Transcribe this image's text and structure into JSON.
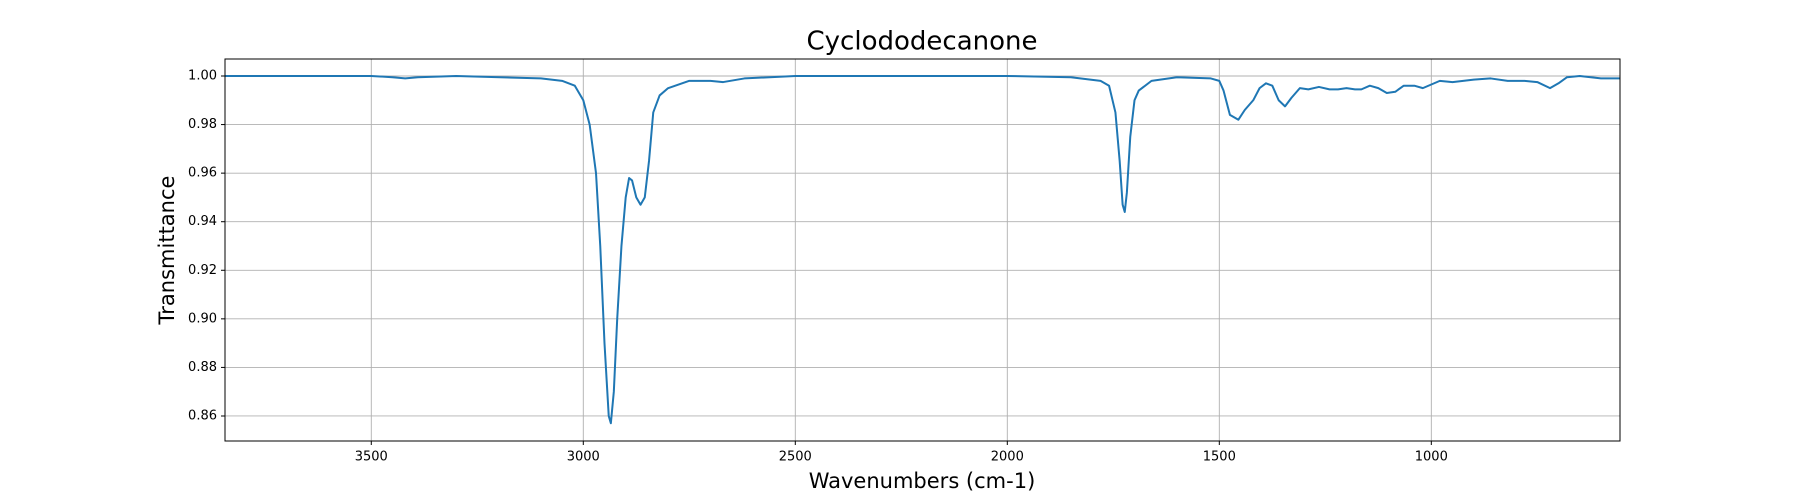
{
  "chart_data": {
    "type": "line",
    "title": "Cyclododecanone",
    "x_label": "Wavenumbers (cm-1)",
    "y_label": "Transmittance",
    "x": [
      3845,
      3700,
      3600,
      3500,
      3450,
      3420,
      3390,
      3300,
      3100,
      3050,
      3020,
      3000,
      2985,
      2970,
      2960,
      2950,
      2940,
      2935,
      2928,
      2920,
      2910,
      2900,
      2892,
      2885,
      2875,
      2865,
      2855,
      2845,
      2835,
      2820,
      2800,
      2750,
      2700,
      2670,
      2620,
      2500,
      2000,
      1850,
      1780,
      1760,
      1745,
      1735,
      1728,
      1723,
      1718,
      1710,
      1700,
      1690,
      1660,
      1600,
      1520,
      1500,
      1490,
      1475,
      1455,
      1440,
      1420,
      1405,
      1390,
      1375,
      1360,
      1345,
      1330,
      1310,
      1290,
      1265,
      1240,
      1220,
      1200,
      1180,
      1165,
      1145,
      1125,
      1105,
      1085,
      1065,
      1040,
      1020,
      1000,
      980,
      950,
      900,
      860,
      820,
      780,
      750,
      720,
      700,
      680,
      650,
      600,
      555
    ],
    "values": [
      1.0,
      1.0,
      1.0,
      1.0,
      0.9995,
      0.999,
      0.9995,
      1.0,
      0.999,
      0.998,
      0.996,
      0.99,
      0.98,
      0.96,
      0.93,
      0.89,
      0.86,
      0.857,
      0.87,
      0.9,
      0.93,
      0.95,
      0.958,
      0.957,
      0.95,
      0.947,
      0.95,
      0.965,
      0.985,
      0.992,
      0.995,
      0.998,
      0.998,
      0.9975,
      0.999,
      1.0,
      1.0,
      0.9995,
      0.998,
      0.996,
      0.985,
      0.965,
      0.947,
      0.944,
      0.952,
      0.975,
      0.99,
      0.994,
      0.998,
      0.9995,
      0.999,
      0.998,
      0.994,
      0.984,
      0.982,
      0.986,
      0.99,
      0.995,
      0.997,
      0.996,
      0.99,
      0.9875,
      0.991,
      0.995,
      0.9945,
      0.9955,
      0.9945,
      0.9945,
      0.995,
      0.9945,
      0.9945,
      0.996,
      0.995,
      0.993,
      0.9935,
      0.996,
      0.996,
      0.995,
      0.9965,
      0.998,
      0.9975,
      0.9985,
      0.999,
      0.998,
      0.998,
      0.9975,
      0.995,
      0.997,
      0.9995,
      1.0,
      0.999,
      0.999
    ],
    "color": "#1f77b4",
    "xlim": [
      3845,
      555
    ],
    "ylim": [
      0.8497,
      1.007
    ],
    "xticks": [
      3500,
      3000,
      2500,
      2000,
      1500,
      1000
    ],
    "yticks": [
      0.86,
      0.88,
      {
        "value": 0.9,
        "label": "0.90"
      },
      0.92,
      0.94,
      0.96,
      0.98,
      {
        "value": 1,
        "label": "1.00"
      }
    ],
    "grid": true
  }
}
